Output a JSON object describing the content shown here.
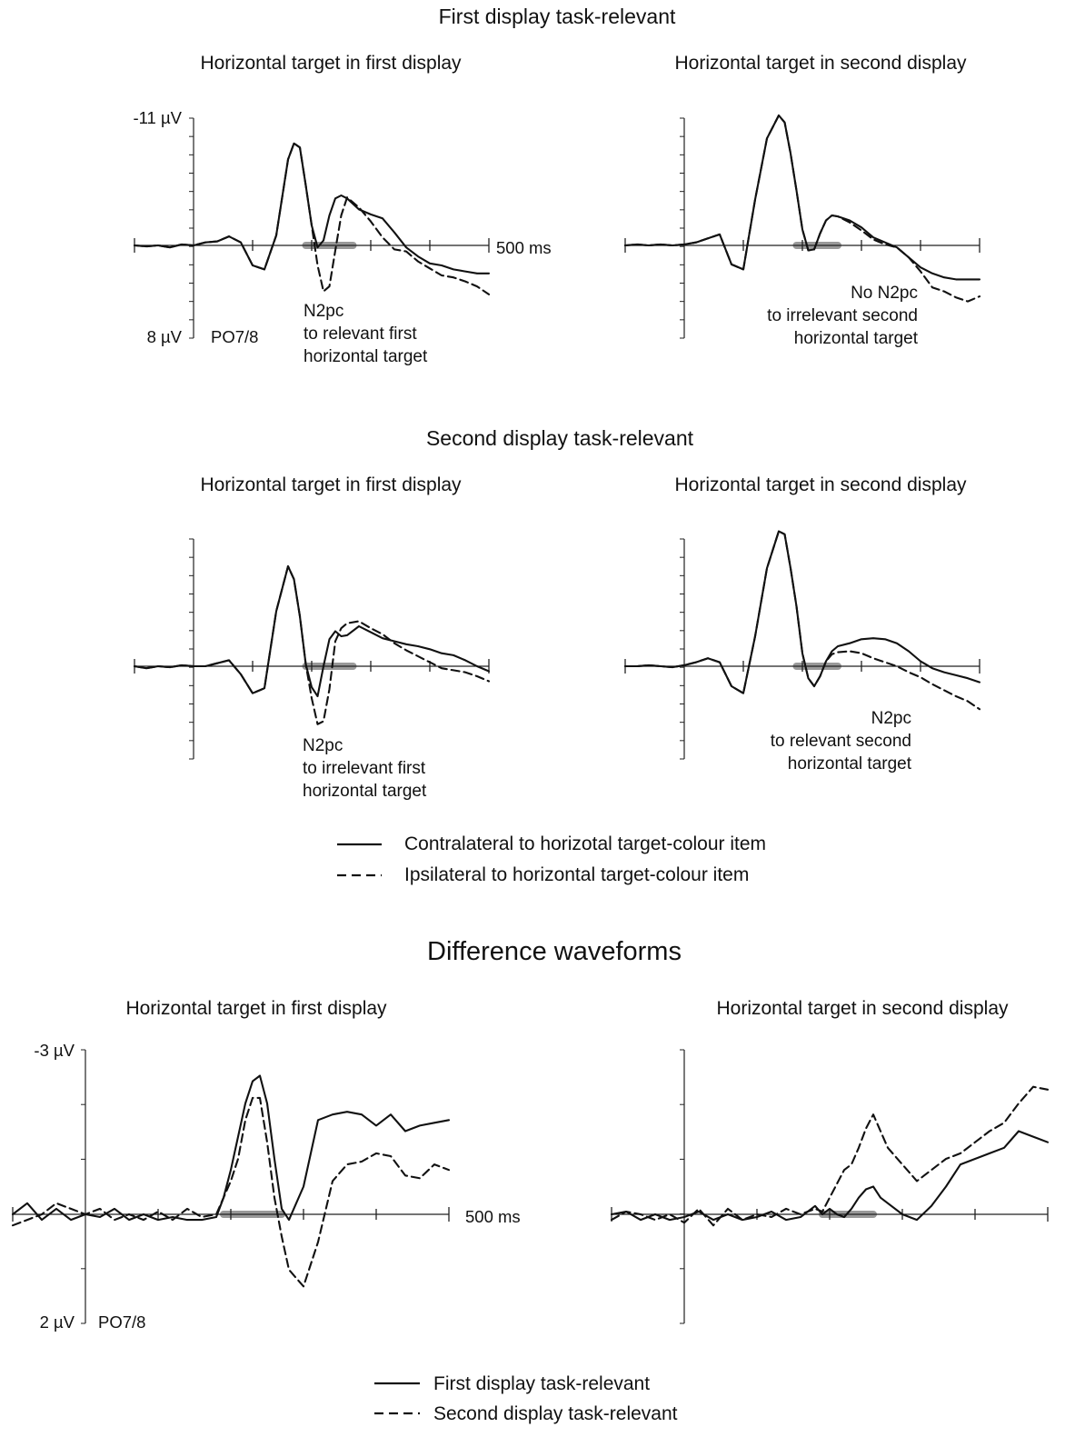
{
  "figure": {
    "section_titles": [
      "First display task-relevant",
      "Second display task-relevant"
    ],
    "difference_title": "Difference waveforms",
    "legend_top": [
      {
        "label": "Contralateral to horizotal target-colour item",
        "style": "solid"
      },
      {
        "label": "Ipsilateral to horizontal target-colour item",
        "style": "dashed"
      }
    ],
    "legend_bottom": [
      {
        "label": "First display task-relevant",
        "style": "solid"
      },
      {
        "label": "Second display task-relevant",
        "style": "dashed"
      }
    ],
    "colors": {
      "trace": "#111111",
      "n2pc_window": "#999999",
      "axis": "#222222"
    }
  },
  "chart_data": [
    {
      "type": "line",
      "section": "First display task-relevant",
      "title": "Horizontal target in first display",
      "ylabel_top": "-11 µV",
      "ylabel_bottom": "8 µV",
      "electrode": "PO7/8",
      "xlabel_end": "500 ms",
      "ylim": [
        -11,
        8
      ],
      "xlim": [
        -100,
        500
      ],
      "y_inverted": true,
      "n2pc_window_ms": [
        190,
        270
      ],
      "annotation": [
        "N2pc",
        "to relevant first",
        "horizontal target"
      ],
      "x": [
        -100,
        -80,
        -60,
        -40,
        -20,
        0,
        20,
        40,
        60,
        80,
        100,
        120,
        140,
        160,
        170,
        180,
        190,
        200,
        210,
        220,
        230,
        240,
        250,
        260,
        280,
        300,
        320,
        340,
        360,
        380,
        400,
        420,
        440,
        460,
        480,
        500
      ],
      "series": [
        {
          "name": "Contralateral to horizotal target-colour item",
          "values": [
            0,
            0.1,
            0,
            0.2,
            -0.1,
            0,
            -0.3,
            -0.4,
            -0.9,
            -0.3,
            2.0,
            2.4,
            -1.0,
            -8.6,
            -10.2,
            -9.8,
            -6.0,
            -2.0,
            0.2,
            -0.5,
            -3.0,
            -4.7,
            -5.0,
            -4.7,
            -3.6,
            -3.1,
            -2.7,
            -1.3,
            0.2,
            1.1,
            1.8,
            2.0,
            2.4,
            2.6,
            2.8,
            2.8
          ]
        },
        {
          "name": "Ipsilateral to horizontal target-colour item",
          "values": [
            0,
            0.1,
            0,
            0.2,
            -0.1,
            0,
            -0.3,
            -0.4,
            -0.9,
            -0.3,
            2.0,
            2.4,
            -1.0,
            -8.6,
            -10.2,
            -9.8,
            -6.0,
            -2.0,
            2.0,
            4.6,
            4.1,
            0.5,
            -3.0,
            -4.8,
            -3.8,
            -2.4,
            -0.8,
            0.4,
            0.6,
            1.6,
            2.3,
            3.0,
            3.2,
            3.6,
            4.1,
            4.9
          ]
        }
      ]
    },
    {
      "type": "line",
      "section": "First display task-relevant",
      "title": "Horizontal target in second display",
      "ylim": [
        -11,
        8
      ],
      "xlim": [
        -100,
        500
      ],
      "y_inverted": true,
      "n2pc_window_ms": [
        190,
        260
      ],
      "annotation": [
        "No N2pc",
        "to irrelevant second",
        "horizontal target"
      ],
      "x": [
        -100,
        -80,
        -60,
        -40,
        -20,
        0,
        20,
        40,
        60,
        80,
        100,
        120,
        140,
        160,
        170,
        180,
        190,
        200,
        210,
        220,
        230,
        240,
        250,
        260,
        280,
        300,
        320,
        340,
        360,
        380,
        400,
        420,
        440,
        460,
        480,
        500
      ],
      "series": [
        {
          "name": "Contralateral to horizotal target-colour item",
          "values": [
            0,
            -0.1,
            0,
            -0.1,
            0,
            -0.1,
            -0.3,
            -0.7,
            -1.1,
            1.9,
            2.4,
            -4.6,
            -10.7,
            -13.0,
            -12.3,
            -9.2,
            -5.5,
            -1.6,
            0.5,
            0.4,
            -1.2,
            -2.5,
            -3.0,
            -2.9,
            -2.5,
            -1.8,
            -0.8,
            -0.3,
            0.2,
            1.2,
            2.2,
            2.8,
            3.2,
            3.4,
            3.4,
            3.4
          ]
        },
        {
          "name": "Ipsilateral to horizontal target-colour item",
          "values": [
            0,
            -0.1,
            0,
            -0.1,
            0,
            -0.1,
            -0.3,
            -0.7,
            -1.1,
            1.9,
            2.4,
            -4.6,
            -10.7,
            -13.0,
            -12.3,
            -9.2,
            -5.5,
            -1.6,
            0.5,
            0.4,
            -1.2,
            -2.5,
            -3.0,
            -2.9,
            -2.3,
            -1.5,
            -0.6,
            -0.1,
            0.2,
            1.2,
            2.6,
            4.2,
            4.6,
            5.2,
            5.6,
            5.1
          ]
        }
      ]
    },
    {
      "type": "line",
      "section": "Second display task-relevant",
      "title": "Horizontal target in first display",
      "ylim": [
        -11,
        8
      ],
      "xlim": [
        -100,
        500
      ],
      "y_inverted": true,
      "n2pc_window_ms": [
        190,
        270
      ],
      "annotation": [
        "N2pc",
        "to irrelevant first",
        "horizontal target"
      ],
      "x": [
        -100,
        -80,
        -60,
        -40,
        -20,
        0,
        20,
        40,
        60,
        80,
        100,
        120,
        140,
        160,
        170,
        180,
        190,
        200,
        210,
        220,
        230,
        240,
        250,
        260,
        280,
        300,
        320,
        340,
        360,
        380,
        400,
        420,
        440,
        460,
        480,
        500
      ],
      "series": [
        {
          "name": "Contralateral to horizotal target-colour item",
          "values": [
            0,
            0.2,
            0,
            0.1,
            -0.1,
            0,
            0,
            -0.3,
            -0.6,
            0.8,
            2.7,
            2.2,
            -5.5,
            -10.0,
            -8.7,
            -5.0,
            -0.2,
            2.1,
            3.0,
            0,
            -2.7,
            -3.5,
            -3.0,
            -3.1,
            -4.0,
            -3.4,
            -2.8,
            -2.5,
            -2.2,
            -2.0,
            -1.7,
            -1.3,
            -1.1,
            -0.6,
            0,
            0.5
          ]
        },
        {
          "name": "Ipsilateral to horizontal target-colour item",
          "values": [
            0,
            0.2,
            0,
            0.1,
            -0.1,
            0,
            0,
            -0.3,
            -0.6,
            0.8,
            2.7,
            2.2,
            -5.5,
            -10.0,
            -8.7,
            -5.0,
            -0.2,
            3.2,
            5.8,
            5.5,
            2.3,
            -2.5,
            -3.8,
            -4.3,
            -4.5,
            -3.8,
            -3.2,
            -2.3,
            -1.6,
            -1.0,
            -0.4,
            0.2,
            0.4,
            0.6,
            1.0,
            1.5
          ]
        }
      ]
    },
    {
      "type": "line",
      "section": "Second display task-relevant",
      "title": "Horizontal target in second display",
      "ylim": [
        -11,
        8
      ],
      "xlim": [
        -100,
        500
      ],
      "y_inverted": true,
      "n2pc_window_ms": [
        190,
        260
      ],
      "annotation": [
        "N2pc",
        "to relevant second",
        "horizontal target"
      ],
      "x": [
        -100,
        -80,
        -60,
        -40,
        -20,
        0,
        20,
        40,
        60,
        80,
        100,
        120,
        140,
        160,
        170,
        180,
        190,
        200,
        210,
        220,
        230,
        240,
        250,
        260,
        280,
        300,
        320,
        340,
        360,
        380,
        400,
        420,
        440,
        460,
        480,
        500
      ],
      "series": [
        {
          "name": "Contralateral to horizotal target-colour item",
          "values": [
            0,
            0,
            -0.1,
            0,
            0.1,
            -0.1,
            -0.4,
            -0.8,
            -0.4,
            2.0,
            2.7,
            -3.0,
            -9.8,
            -13.5,
            -13.2,
            -9.8,
            -6.0,
            -1.3,
            1.2,
            2.0,
            1.0,
            -0.5,
            -1.5,
            -2.0,
            -2.3,
            -2.7,
            -2.8,
            -2.7,
            -2.3,
            -1.5,
            -0.5,
            0.2,
            0.6,
            0.9,
            1.2,
            1.6
          ]
        },
        {
          "name": "Ipsilateral to horizontal target-colour item",
          "values": [
            0,
            0,
            -0.1,
            0,
            0.1,
            -0.1,
            -0.4,
            -0.8,
            -0.4,
            2.0,
            2.7,
            -3.0,
            -9.8,
            -13.5,
            -13.2,
            -9.8,
            -6.0,
            -1.3,
            1.2,
            2.0,
            1.0,
            -0.5,
            -1.2,
            -1.4,
            -1.5,
            -1.3,
            -0.8,
            -0.4,
            0,
            0.6,
            1.1,
            1.8,
            2.4,
            3.0,
            3.5,
            4.3
          ]
        }
      ]
    },
    {
      "type": "line",
      "section": "Difference waveforms",
      "title": "Horizontal target in first display",
      "ylabel_top": "-3 µV",
      "ylabel_bottom": "2 µV",
      "electrode": "PO7/8",
      "xlabel_end": "500 ms",
      "ylim": [
        -3,
        2
      ],
      "xlim": [
        -100,
        500
      ],
      "y_inverted": true,
      "n2pc_window_ms": [
        190,
        270
      ],
      "x": [
        -100,
        -80,
        -60,
        -40,
        -20,
        0,
        20,
        40,
        60,
        80,
        100,
        120,
        140,
        160,
        180,
        190,
        200,
        210,
        220,
        230,
        240,
        250,
        260,
        270,
        280,
        300,
        320,
        340,
        360,
        380,
        400,
        420,
        440,
        460,
        480,
        500
      ],
      "series": [
        {
          "name": "First display task-relevant",
          "values": [
            0,
            -0.2,
            0.1,
            -0.1,
            0.1,
            0,
            0.05,
            -0.1,
            0.1,
            0,
            0.1,
            0.05,
            0.1,
            0.1,
            0.05,
            -0.3,
            -0.8,
            -1.4,
            -2.0,
            -2.4,
            -2.5,
            -2.0,
            -1.0,
            -0.1,
            0.1,
            -0.5,
            -1.7,
            -1.8,
            -1.85,
            -1.8,
            -1.6,
            -1.8,
            -1.5,
            -1.6,
            -1.65,
            -1.7
          ]
        },
        {
          "name": "Second display task-relevant",
          "values": [
            0.2,
            0.1,
            0,
            -0.2,
            -0.1,
            0,
            -0.1,
            0.1,
            0,
            0.1,
            -0.05,
            0.1,
            -0.1,
            0.05,
            0,
            -0.3,
            -0.6,
            -1.0,
            -1.7,
            -2.1,
            -2.1,
            -1.3,
            -0.3,
            0.4,
            1.0,
            1.3,
            0.5,
            -0.6,
            -0.9,
            -0.95,
            -1.1,
            -1.05,
            -0.7,
            -0.65,
            -0.9,
            -0.8
          ]
        }
      ]
    },
    {
      "type": "line",
      "section": "Difference waveforms",
      "title": "Horizontal target in second display",
      "ylim": [
        -3,
        2
      ],
      "xlim": [
        -100,
        500
      ],
      "y_inverted": true,
      "n2pc_window_ms": [
        190,
        260
      ],
      "x": [
        -100,
        -80,
        -60,
        -40,
        -20,
        0,
        20,
        40,
        60,
        80,
        100,
        120,
        140,
        160,
        180,
        190,
        200,
        210,
        220,
        230,
        240,
        250,
        260,
        270,
        280,
        300,
        320,
        340,
        360,
        380,
        400,
        420,
        440,
        460,
        480,
        500
      ],
      "series": [
        {
          "name": "First display task-relevant",
          "values": [
            0,
            -0.05,
            0.1,
            0,
            0.1,
            0.05,
            -0.05,
            0.1,
            0,
            0.1,
            0.05,
            -0.05,
            0.1,
            0.05,
            -0.15,
            0,
            -0.1,
            0,
            0.05,
            -0.1,
            -0.3,
            -0.45,
            -0.5,
            -0.3,
            -0.2,
            0,
            0.1,
            -0.15,
            -0.5,
            -0.9,
            -1.0,
            -1.1,
            -1.2,
            -1.5,
            -1.4,
            -1.3
          ]
        },
        {
          "name": "Second display task-relevant",
          "values": [
            0.1,
            -0.05,
            0,
            0.1,
            0,
            0.15,
            -0.1,
            0.2,
            -0.1,
            0.1,
            0,
            0.05,
            -0.1,
            0,
            -0.1,
            -0.05,
            -0.3,
            -0.55,
            -0.8,
            -0.9,
            -1.2,
            -1.55,
            -1.8,
            -1.5,
            -1.2,
            -0.9,
            -0.6,
            -0.8,
            -1.0,
            -1.1,
            -1.3,
            -1.5,
            -1.65,
            -2.0,
            -2.3,
            -2.25
          ]
        }
      ]
    }
  ]
}
